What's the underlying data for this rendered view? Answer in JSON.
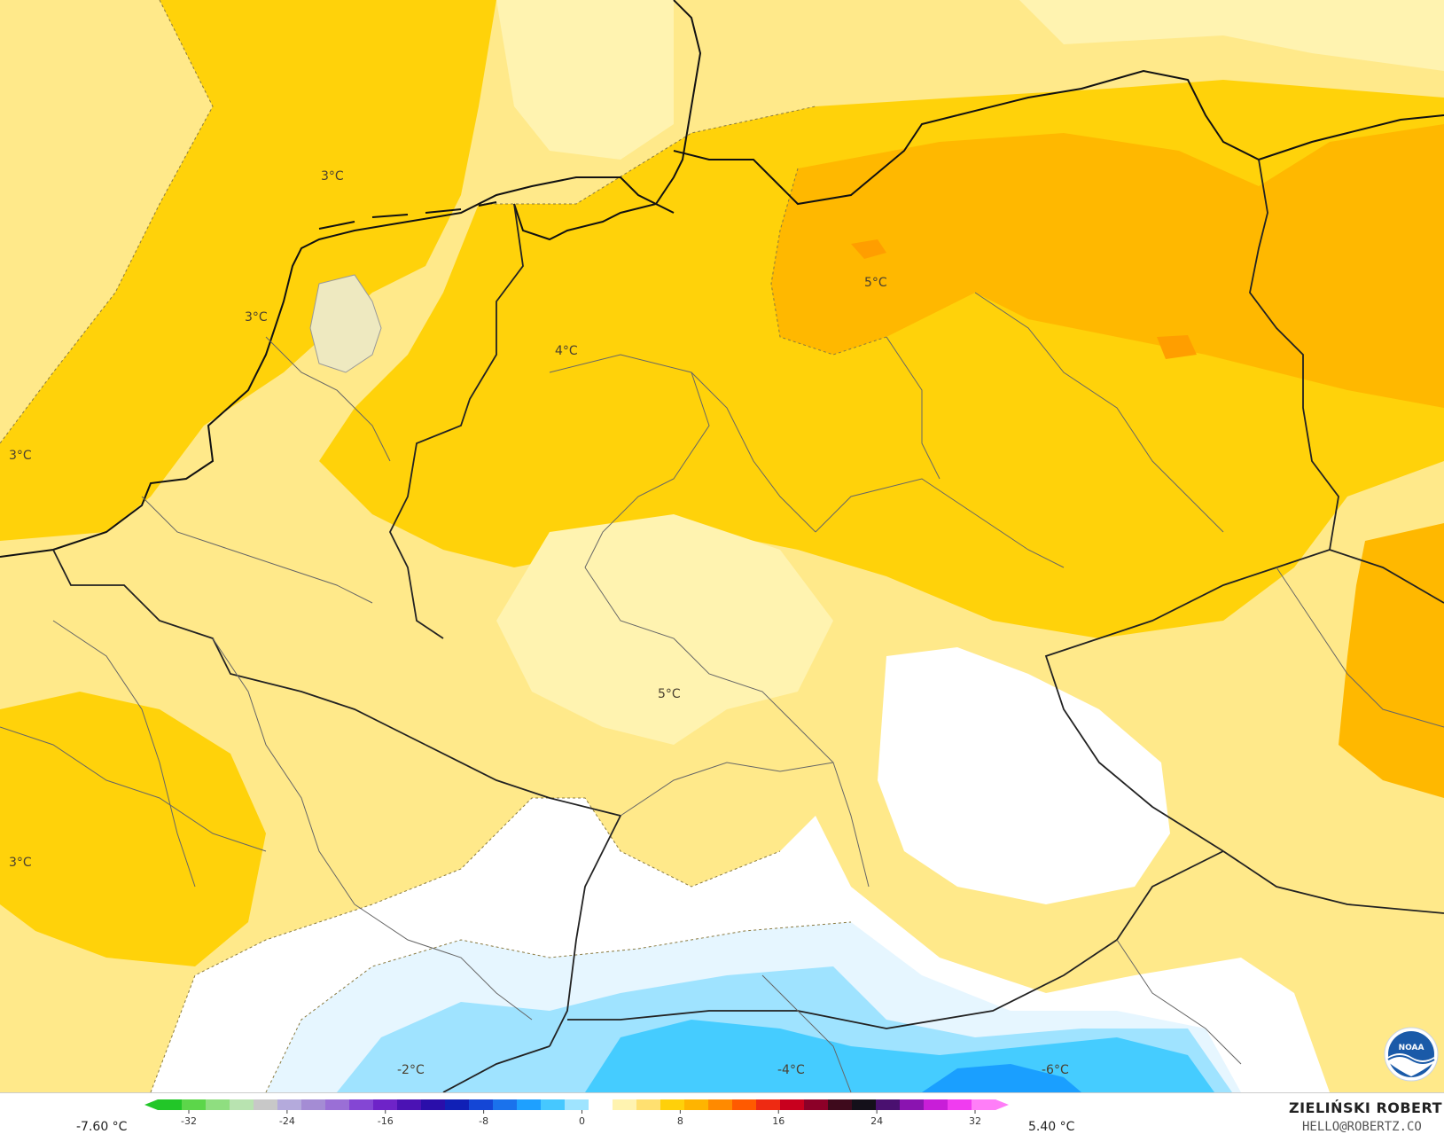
{
  "map": {
    "contour_labels": [
      {
        "id": "label-3c-northsea",
        "text": "3°C"
      },
      {
        "id": "label-3c-england",
        "text": "3°C"
      },
      {
        "id": "label-3c-west",
        "text": "3°C"
      },
      {
        "id": "label-3c-france",
        "text": "3°C"
      },
      {
        "id": "label-4c-germany",
        "text": "4°C"
      },
      {
        "id": "label-5c-pomerania",
        "text": "5°C"
      },
      {
        "id": "label-5c-bohemia",
        "text": "5°C"
      },
      {
        "id": "label-neg2c-alps",
        "text": "-2°C"
      },
      {
        "id": "label-neg4c-alps",
        "text": "-4°C"
      },
      {
        "id": "label-neg6c-alps",
        "text": "-6°C"
      }
    ],
    "colors": {
      "pale_yellow": "#fff3b0",
      "light_yellow": "#ffe98a",
      "yellow": "#ffdd33",
      "gold": "#ffd20a",
      "orange": "#ffb800",
      "dark_orange": "#ff9e00",
      "white": "#ffffff",
      "pale_blue": "#e6f6ff",
      "light_blue": "#9fe3ff",
      "blue": "#45ccff",
      "deep_blue": "#1a9fff",
      "coastline": "#111111",
      "border": "#333333",
      "subregion": "#666666"
    }
  },
  "legend": {
    "range_min": "-7.60 °C",
    "range_max": "5.40 °C",
    "ticks": [
      "-32",
      "-24",
      "-16",
      "-8",
      "0",
      "8",
      "16",
      "24",
      "32"
    ],
    "scale_colors": [
      "#22c628",
      "#5cd64a",
      "#8fde80",
      "#b8e3b0",
      "#c8c8c8",
      "#b4aadc",
      "#a48cd4",
      "#9a6fd6",
      "#8446d4",
      "#6e23c8",
      "#4b12b4",
      "#2a0eaa",
      "#1020b6",
      "#1446d6",
      "#1a72ec",
      "#1ea0ff",
      "#46c8ff",
      "#9fe4ff",
      "#ffffff",
      "#fff3b0",
      "#ffe070",
      "#ffd00a",
      "#ffb400",
      "#ff8a00",
      "#ff5a00",
      "#ee2a12",
      "#c8001e",
      "#8c0028",
      "#3e0a1c",
      "#14101a",
      "#4a1070",
      "#8a14b0",
      "#c81ed8",
      "#f03cf0",
      "#ff7ef8"
    ]
  },
  "credits": {
    "author": "ZIELIŃSKI ROBERT",
    "email": "HELLO@ROBERTZ.CO",
    "logo_text": "NOAA"
  }
}
